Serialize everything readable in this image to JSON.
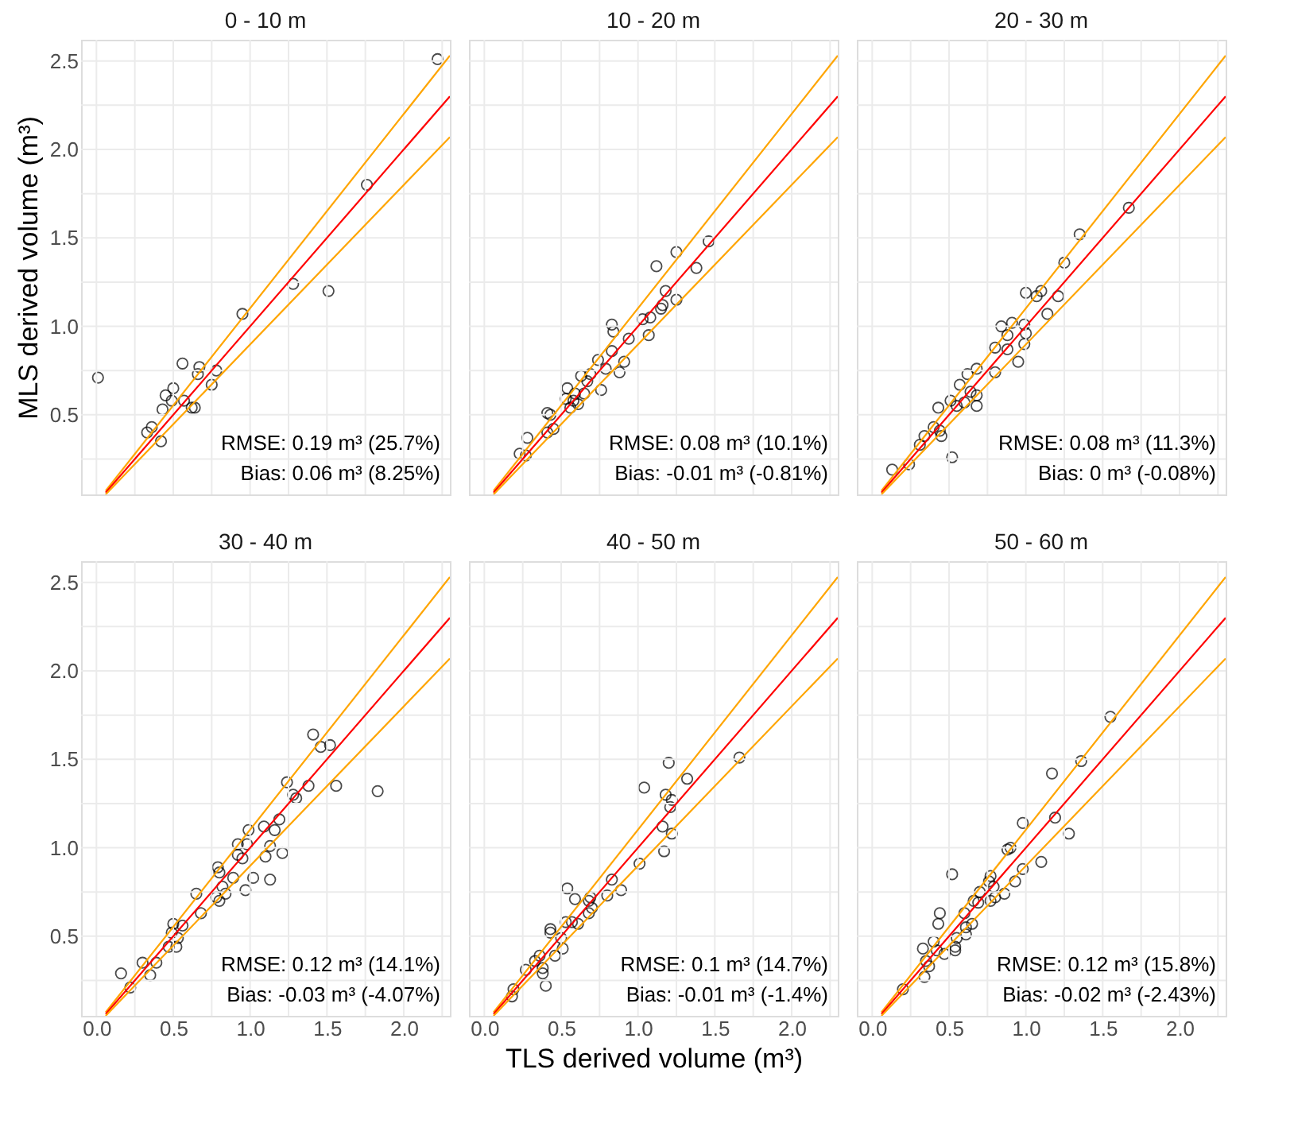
{
  "chart_data": [
    {
      "type": "scatter",
      "title": "0 - 10 m",
      "ylabel": "MLS derived volume (m³)",
      "tick_labels": "y",
      "grid": true,
      "xlim": [
        -0.1,
        2.3
      ],
      "ylim": [
        0.05,
        2.62
      ],
      "xticks": [
        {
          "value": 0,
          "label": null
        },
        {
          "value": 0.25,
          "label": null
        },
        {
          "value": 0.5,
          "label": null
        },
        {
          "value": 0.75,
          "label": null
        },
        {
          "value": 1,
          "label": null
        },
        {
          "value": 1.25,
          "label": null
        },
        {
          "value": 1.5,
          "label": null
        },
        {
          "value": 1.75,
          "label": null
        },
        {
          "value": 2,
          "label": null
        },
        {
          "value": 2.25,
          "label": null
        }
      ],
      "yticks": [
        {
          "value": 0.25,
          "label": null
        },
        {
          "value": 0.5,
          "label": "0.5"
        },
        {
          "value": 0.75,
          "label": null
        },
        {
          "value": 1,
          "label": "1.0"
        },
        {
          "value": 1.25,
          "label": null
        },
        {
          "value": 1.5,
          "label": "1.5"
        },
        {
          "value": 1.75,
          "label": null
        },
        {
          "value": 2,
          "label": "2.0"
        },
        {
          "value": 2.25,
          "label": null
        },
        {
          "value": 2.5,
          "label": "2.5"
        }
      ],
      "annotations": [
        "RMSE: 0.19 m³ (25.7%)",
        "Bias: 0.06 m³ (8.25%)"
      ],
      "series": [
        {
          "type": "scatter",
          "marker": "circle",
          "color": "#000000",
          "x": [
            2.22,
            1.76,
            1.28,
            1.51,
            0.95,
            0.01,
            0.56,
            0.67,
            0.66,
            0.78,
            0.75,
            0.5,
            0.45,
            0.57,
            0.49,
            0.43,
            0.64,
            0.36,
            0.33,
            0.42,
            0.62
          ],
          "values": [
            2.51,
            1.8,
            1.24,
            1.2,
            1.07,
            0.71,
            0.79,
            0.77,
            0.73,
            0.75,
            0.67,
            0.65,
            0.61,
            0.58,
            0.58,
            0.53,
            0.54,
            0.43,
            0.4,
            0.35,
            0.54
          ]
        },
        {
          "type": "line",
          "color": "#ffa500",
          "x": [
            0.06,
            2.3
          ],
          "values": [
            0.07,
            2.53
          ]
        },
        {
          "type": "line",
          "color": "#ff0000",
          "x": [
            0.06,
            2.3
          ],
          "values": [
            0.06,
            2.3
          ]
        },
        {
          "type": "line",
          "color": "#ffa500",
          "x": [
            0.06,
            2.3
          ],
          "values": [
            0.05,
            2.07
          ]
        }
      ]
    },
    {
      "type": "scatter",
      "title": "10 - 20 m",
      "tick_labels": false,
      "grid": true,
      "xlim": [
        -0.1,
        2.3
      ],
      "ylim": [
        0.05,
        2.62
      ],
      "xticks": [
        {
          "value": 0,
          "label": null
        },
        {
          "value": 0.25,
          "label": null
        },
        {
          "value": 0.5,
          "label": null
        },
        {
          "value": 0.75,
          "label": null
        },
        {
          "value": 1,
          "label": null
        },
        {
          "value": 1.25,
          "label": null
        },
        {
          "value": 1.5,
          "label": null
        },
        {
          "value": 1.75,
          "label": null
        },
        {
          "value": 2,
          "label": null
        },
        {
          "value": 2.25,
          "label": null
        }
      ],
      "yticks": [
        {
          "value": 0.25,
          "label": null
        },
        {
          "value": 0.5,
          "label": null
        },
        {
          "value": 0.75,
          "label": null
        },
        {
          "value": 1,
          "label": null
        },
        {
          "value": 1.25,
          "label": null
        },
        {
          "value": 1.5,
          "label": null
        },
        {
          "value": 1.75,
          "label": null
        },
        {
          "value": 2,
          "label": null
        },
        {
          "value": 2.25,
          "label": null
        },
        {
          "value": 2.5,
          "label": null
        }
      ],
      "annotations": [
        "RMSE: 0.08 m³ (10.1%)",
        "Bias: -0.01 m³ (-0.81%)"
      ],
      "series": [
        {
          "type": "scatter",
          "marker": "circle",
          "color": "#000000",
          "x": [
            1.46,
            1.25,
            1.12,
            1.38,
            1.18,
            1.25,
            1.16,
            1.15,
            1.08,
            1.03,
            1.07,
            0.83,
            0.84,
            0.94,
            0.83,
            0.74,
            0.91,
            0.79,
            0.88,
            0.76,
            0.63,
            0.67,
            0.54,
            0.59,
            0.65,
            0.58,
            0.61,
            0.53,
            0.41,
            0.43,
            0.45,
            0.41,
            0.28,
            0.23,
            0.27,
            0.69,
            0.56
          ],
          "values": [
            1.48,
            1.42,
            1.34,
            1.33,
            1.2,
            1.15,
            1.12,
            1.1,
            1.05,
            1.04,
            0.95,
            1.01,
            0.97,
            0.93,
            0.86,
            0.81,
            0.8,
            0.76,
            0.74,
            0.64,
            0.72,
            0.69,
            0.65,
            0.62,
            0.62,
            0.58,
            0.56,
            0.59,
            0.51,
            0.5,
            0.42,
            0.4,
            0.37,
            0.28,
            0.27,
            0.73,
            0.54
          ]
        },
        {
          "type": "line",
          "color": "#ffa500",
          "x": [
            0.06,
            2.3
          ],
          "values": [
            0.07,
            2.53
          ]
        },
        {
          "type": "line",
          "color": "#ff0000",
          "x": [
            0.06,
            2.3
          ],
          "values": [
            0.06,
            2.3
          ]
        },
        {
          "type": "line",
          "color": "#ffa500",
          "x": [
            0.06,
            2.3
          ],
          "values": [
            0.05,
            2.07
          ]
        }
      ]
    },
    {
      "type": "scatter",
      "title": "20 - 30 m",
      "tick_labels": false,
      "grid": true,
      "xlim": [
        -0.1,
        2.3
      ],
      "ylim": [
        0.05,
        2.62
      ],
      "xticks": [
        {
          "value": 0,
          "label": null
        },
        {
          "value": 0.25,
          "label": null
        },
        {
          "value": 0.5,
          "label": null
        },
        {
          "value": 0.75,
          "label": null
        },
        {
          "value": 1,
          "label": null
        },
        {
          "value": 1.25,
          "label": null
        },
        {
          "value": 1.5,
          "label": null
        },
        {
          "value": 1.75,
          "label": null
        },
        {
          "value": 2,
          "label": null
        },
        {
          "value": 2.25,
          "label": null
        }
      ],
      "yticks": [
        {
          "value": 0.25,
          "label": null
        },
        {
          "value": 0.5,
          "label": null
        },
        {
          "value": 0.75,
          "label": null
        },
        {
          "value": 1,
          "label": null
        },
        {
          "value": 1.25,
          "label": null
        },
        {
          "value": 1.5,
          "label": null
        },
        {
          "value": 1.75,
          "label": null
        },
        {
          "value": 2,
          "label": null
        },
        {
          "value": 2.25,
          "label": null
        },
        {
          "value": 2.5,
          "label": null
        }
      ],
      "annotations": [
        "RMSE: 0.08 m³ (11.3%)",
        "Bias: 0 m³ (-0.08%)"
      ],
      "series": [
        {
          "type": "scatter",
          "marker": "circle",
          "color": "#000000",
          "x": [
            1.67,
            1.35,
            1.25,
            1.0,
            1.1,
            1.07,
            1.21,
            1.14,
            0.84,
            0.91,
            0.99,
            0.88,
            1.0,
            0.8,
            0.88,
            0.99,
            0.95,
            0.8,
            0.68,
            0.62,
            0.57,
            0.64,
            0.68,
            0.6,
            0.51,
            0.55,
            0.43,
            0.68,
            0.4,
            0.44,
            0.34,
            0.31,
            0.45,
            0.52,
            0.24,
            0.13
          ],
          "values": [
            1.67,
            1.52,
            1.36,
            1.19,
            1.2,
            1.17,
            1.17,
            1.07,
            1.0,
            1.02,
            1.01,
            0.95,
            0.96,
            0.88,
            0.87,
            0.9,
            0.8,
            0.74,
            0.76,
            0.73,
            0.67,
            0.63,
            0.61,
            0.57,
            0.58,
            0.55,
            0.54,
            0.55,
            0.43,
            0.41,
            0.38,
            0.33,
            0.38,
            0.26,
            0.22,
            0.19
          ]
        },
        {
          "type": "line",
          "color": "#ffa500",
          "x": [
            0.06,
            2.3
          ],
          "values": [
            0.07,
            2.53
          ]
        },
        {
          "type": "line",
          "color": "#ff0000",
          "x": [
            0.06,
            2.3
          ],
          "values": [
            0.06,
            2.3
          ]
        },
        {
          "type": "line",
          "color": "#ffa500",
          "x": [
            0.06,
            2.3
          ],
          "values": [
            0.05,
            2.07
          ]
        }
      ]
    },
    {
      "type": "scatter",
      "title": "30 - 40 m",
      "grid": true,
      "xlim": [
        -0.1,
        2.3
      ],
      "ylim": [
        0.05,
        2.62
      ],
      "xticks": [
        {
          "value": 0,
          "label": "0.0"
        },
        {
          "value": 0.25,
          "label": null
        },
        {
          "value": 0.5,
          "label": "0.5"
        },
        {
          "value": 0.75,
          "label": null
        },
        {
          "value": 1,
          "label": "1.0"
        },
        {
          "value": 1.25,
          "label": null
        },
        {
          "value": 1.5,
          "label": "1.5"
        },
        {
          "value": 1.75,
          "label": null
        },
        {
          "value": 2,
          "label": "2.0"
        },
        {
          "value": 2.25,
          "label": null
        }
      ],
      "yticks": [
        {
          "value": 0.25,
          "label": null
        },
        {
          "value": 0.5,
          "label": "0.5"
        },
        {
          "value": 0.75,
          "label": null
        },
        {
          "value": 1,
          "label": "1.0"
        },
        {
          "value": 1.25,
          "label": null
        },
        {
          "value": 1.5,
          "label": "1.5"
        },
        {
          "value": 1.75,
          "label": null
        },
        {
          "value": 2,
          "label": "2.0"
        },
        {
          "value": 2.25,
          "label": null
        },
        {
          "value": 2.5,
          "label": "2.5"
        }
      ],
      "annotations": [
        "RMSE: 0.12 m³ (14.1%)",
        "Bias: -0.03 m³ (-4.07%)"
      ],
      "series": [
        {
          "type": "scatter",
          "marker": "circle",
          "color": "#000000",
          "x": [
            1.41,
            1.46,
            1.52,
            1.24,
            1.38,
            1.56,
            1.83,
            1.28,
            1.3,
            1.19,
            1.16,
            1.09,
            0.99,
            1.13,
            1.21,
            1.1,
            0.92,
            0.98,
            0.92,
            0.95,
            0.79,
            0.8,
            0.89,
            1.02,
            1.13,
            0.82,
            0.84,
            0.97,
            0.65,
            0.78,
            0.8,
            0.68,
            0.5,
            0.56,
            0.49,
            0.53,
            0.47,
            0.52,
            0.3,
            0.39,
            0.16,
            0.35,
            0.22
          ],
          "values": [
            1.64,
            1.57,
            1.58,
            1.37,
            1.35,
            1.35,
            1.32,
            1.3,
            1.28,
            1.16,
            1.1,
            1.12,
            1.1,
            1.01,
            0.97,
            0.95,
            1.02,
            1.02,
            0.96,
            0.94,
            0.89,
            0.86,
            0.83,
            0.83,
            0.82,
            0.78,
            0.74,
            0.76,
            0.74,
            0.72,
            0.7,
            0.63,
            0.57,
            0.56,
            0.52,
            0.49,
            0.44,
            0.44,
            0.35,
            0.35,
            0.29,
            0.28,
            0.21
          ]
        },
        {
          "type": "line",
          "color": "#ffa500",
          "x": [
            0.06,
            2.3
          ],
          "values": [
            0.07,
            2.53
          ]
        },
        {
          "type": "line",
          "color": "#ff0000",
          "x": [
            0.06,
            2.3
          ],
          "values": [
            0.06,
            2.3
          ]
        },
        {
          "type": "line",
          "color": "#ffa500",
          "x": [
            0.06,
            2.3
          ],
          "values": [
            0.05,
            2.07
          ]
        }
      ]
    },
    {
      "type": "scatter",
      "title": "40 - 50 m",
      "xlabel": "TLS derived volume (m³)",
      "tick_labels": "x",
      "grid": true,
      "xlim": [
        -0.1,
        2.3
      ],
      "ylim": [
        0.05,
        2.62
      ],
      "xticks": [
        {
          "value": 0,
          "label": "0.0"
        },
        {
          "value": 0.25,
          "label": null
        },
        {
          "value": 0.5,
          "label": "0.5"
        },
        {
          "value": 0.75,
          "label": null
        },
        {
          "value": 1,
          "label": "1.0"
        },
        {
          "value": 1.25,
          "label": null
        },
        {
          "value": 1.5,
          "label": "1.5"
        },
        {
          "value": 1.75,
          "label": null
        },
        {
          "value": 2,
          "label": "2.0"
        },
        {
          "value": 2.25,
          "label": null
        }
      ],
      "yticks": [
        {
          "value": 0.25,
          "label": null
        },
        {
          "value": 0.5,
          "label": null
        },
        {
          "value": 0.75,
          "label": null
        },
        {
          "value": 1,
          "label": null
        },
        {
          "value": 1.25,
          "label": null
        },
        {
          "value": 1.5,
          "label": null
        },
        {
          "value": 1.75,
          "label": null
        },
        {
          "value": 2,
          "label": null
        },
        {
          "value": 2.25,
          "label": null
        },
        {
          "value": 2.5,
          "label": null
        }
      ],
      "annotations": [
        "RMSE: 0.1 m³ (14.7%)",
        "Bias: -0.01 m³ (-1.4%)"
      ],
      "series": [
        {
          "type": "scatter",
          "marker": "circle",
          "color": "#000000",
          "x": [
            1.66,
            1.2,
            1.32,
            1.04,
            1.18,
            1.22,
            1.21,
            1.16,
            1.22,
            1.17,
            1.01,
            0.83,
            0.89,
            0.8,
            0.54,
            0.59,
            0.69,
            0.68,
            0.7,
            0.68,
            0.53,
            0.57,
            0.61,
            0.43,
            0.43,
            0.5,
            0.51,
            0.46,
            0.36,
            0.33,
            0.27,
            0.38,
            0.38,
            0.4,
            0.19,
            0.18
          ],
          "values": [
            1.51,
            1.48,
            1.39,
            1.34,
            1.3,
            1.27,
            1.23,
            1.12,
            1.08,
            0.98,
            0.91,
            0.82,
            0.76,
            0.73,
            0.77,
            0.71,
            0.72,
            0.7,
            0.66,
            0.63,
            0.58,
            0.58,
            0.57,
            0.54,
            0.52,
            0.49,
            0.43,
            0.39,
            0.39,
            0.36,
            0.31,
            0.32,
            0.29,
            0.22,
            0.2,
            0.16
          ]
        },
        {
          "type": "line",
          "color": "#ffa500",
          "x": [
            0.06,
            2.3
          ],
          "values": [
            0.07,
            2.53
          ]
        },
        {
          "type": "line",
          "color": "#ff0000",
          "x": [
            0.06,
            2.3
          ],
          "values": [
            0.06,
            2.3
          ]
        },
        {
          "type": "line",
          "color": "#ffa500",
          "x": [
            0.06,
            2.3
          ],
          "values": [
            0.05,
            2.07
          ]
        }
      ]
    },
    {
      "type": "scatter",
      "title": "50 - 60 m",
      "tick_labels": "x",
      "grid": true,
      "xlim": [
        -0.1,
        2.3
      ],
      "ylim": [
        0.05,
        2.62
      ],
      "xticks": [
        {
          "value": 0,
          "label": "0.0"
        },
        {
          "value": 0.25,
          "label": null
        },
        {
          "value": 0.5,
          "label": "0.5"
        },
        {
          "value": 0.75,
          "label": null
        },
        {
          "value": 1,
          "label": "1.0"
        },
        {
          "value": 1.25,
          "label": null
        },
        {
          "value": 1.5,
          "label": "1.5"
        },
        {
          "value": 1.75,
          "label": null
        },
        {
          "value": 2,
          "label": "2.0"
        },
        {
          "value": 2.25,
          "label": null
        }
      ],
      "yticks": [
        {
          "value": 0.25,
          "label": null
        },
        {
          "value": 0.5,
          "label": null
        },
        {
          "value": 0.75,
          "label": null
        },
        {
          "value": 1,
          "label": null
        },
        {
          "value": 1.25,
          "label": null
        },
        {
          "value": 1.5,
          "label": null
        },
        {
          "value": 1.75,
          "label": null
        },
        {
          "value": 2,
          "label": null
        },
        {
          "value": 2.25,
          "label": null
        },
        {
          "value": 2.5,
          "label": null
        }
      ],
      "annotations": [
        "RMSE: 0.12 m³ (15.8%)",
        "Bias: -0.02 m³ (-2.43%)"
      ],
      "series": [
        {
          "type": "scatter",
          "marker": "circle",
          "color": "#000000",
          "x": [
            1.55,
            1.36,
            1.17,
            1.19,
            1.28,
            0.98,
            0.88,
            0.9,
            1.1,
            0.98,
            0.93,
            0.77,
            0.76,
            0.79,
            0.86,
            0.7,
            0.66,
            0.69,
            0.77,
            0.8,
            0.52,
            0.6,
            0.65,
            0.61,
            0.61,
            0.55,
            0.44,
            0.43,
            0.4,
            0.33,
            0.42,
            0.54,
            0.54,
            0.47,
            0.35,
            0.37,
            0.34,
            0.2
          ],
          "values": [
            1.74,
            1.49,
            1.42,
            1.17,
            1.08,
            1.14,
            0.99,
            1.0,
            0.92,
            0.88,
            0.81,
            0.84,
            0.81,
            0.78,
            0.74,
            0.75,
            0.7,
            0.69,
            0.7,
            0.72,
            0.85,
            0.63,
            0.57,
            0.55,
            0.51,
            0.49,
            0.63,
            0.57,
            0.47,
            0.43,
            0.42,
            0.44,
            0.42,
            0.4,
            0.36,
            0.33,
            0.27,
            0.2
          ]
        },
        {
          "type": "line",
          "color": "#ffa500",
          "x": [
            0.06,
            2.3
          ],
          "values": [
            0.07,
            2.53
          ]
        },
        {
          "type": "line",
          "color": "#ff0000",
          "x": [
            0.06,
            2.3
          ],
          "values": [
            0.06,
            2.3
          ]
        },
        {
          "type": "line",
          "color": "#ffa500",
          "x": [
            0.06,
            2.3
          ],
          "values": [
            0.05,
            2.07
          ]
        }
      ]
    }
  ]
}
